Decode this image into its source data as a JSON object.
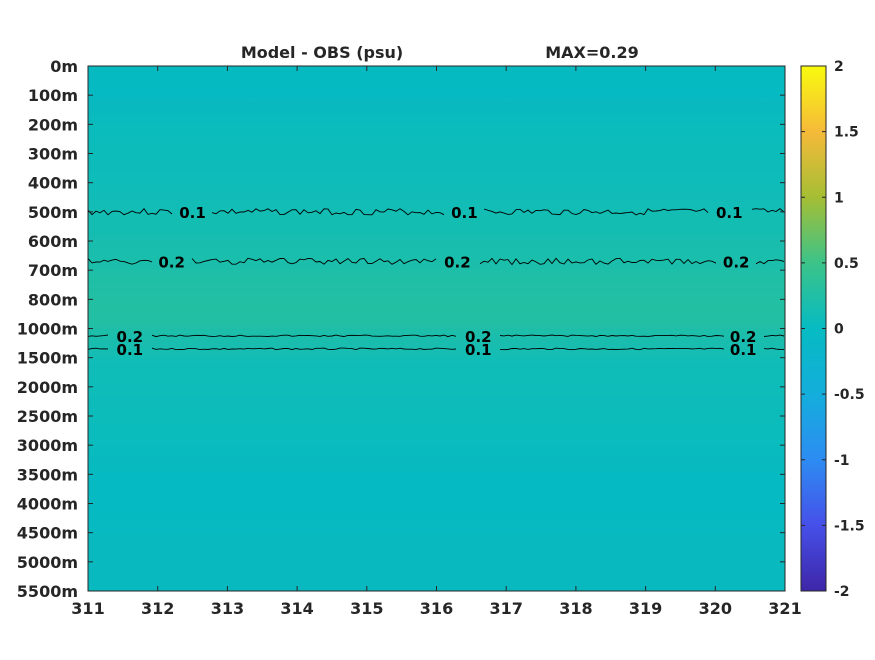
{
  "chart_data": {
    "type": "heatmap",
    "title": "Model - OBS (psu)",
    "title_right": "MAX=0.29",
    "xlabel": "",
    "ylabel": "",
    "x_ticks": [
      "311",
      "312",
      "313",
      "314",
      "315",
      "316",
      "317",
      "318",
      "319",
      "320",
      "321"
    ],
    "xlim": [
      311,
      321
    ],
    "y_ticks": [
      "0m",
      "100m",
      "200m",
      "300m",
      "400m",
      "500m",
      "600m",
      "700m",
      "800m",
      "1000m",
      "1500m",
      "2000m",
      "2500m",
      "3000m",
      "3500m",
      "4000m",
      "4500m",
      "5000m",
      "5500m"
    ],
    "y_axis_direction": "depth increases downward",
    "colorbar": {
      "ticks": [
        "2",
        "1.5",
        "1",
        "0.5",
        "0",
        "-0.5",
        "-1",
        "-1.5",
        "-2"
      ],
      "range": [
        -2,
        2
      ],
      "colormap": "parula"
    },
    "depth_profile": {
      "depths": [
        "0m",
        "100m",
        "200m",
        "300m",
        "400m",
        "500m",
        "600m",
        "700m",
        "800m",
        "1000m",
        "1500m",
        "2000m",
        "2500m",
        "3000m",
        "3500m",
        "4000m",
        "4500m",
        "5000m",
        "5500m"
      ],
      "values": [
        0.02,
        -0.02,
        0.05,
        0.06,
        0.07,
        0.12,
        0.16,
        0.22,
        0.27,
        0.25,
        0.1,
        0.07,
        0.06,
        0.04,
        0.0,
        -0.02,
        0.02,
        0.03,
        0.03
      ]
    },
    "contours": [
      {
        "level": 0.1,
        "depth_index": 5.0,
        "labels": [
          "0.1",
          "0.1",
          "0.1"
        ],
        "label_x": [
          312.5,
          316.4,
          320.2
        ]
      },
      {
        "level": 0.2,
        "depth_index": 6.7,
        "labels": [
          "0.2",
          "0.2",
          "0.2"
        ],
        "label_x": [
          312.2,
          316.3,
          320.3
        ]
      },
      {
        "level": 0.2,
        "depth_index": 9.25,
        "labels": [
          "0.2",
          "0.2",
          "0.2"
        ],
        "label_x": [
          311.6,
          316.6,
          320.4
        ]
      },
      {
        "level": 0.1,
        "depth_index": 9.7,
        "labels": [
          "0.1",
          "0.1",
          "0.1"
        ],
        "label_x": [
          311.6,
          316.6,
          320.4
        ]
      }
    ],
    "grid": false,
    "legend": "none"
  }
}
